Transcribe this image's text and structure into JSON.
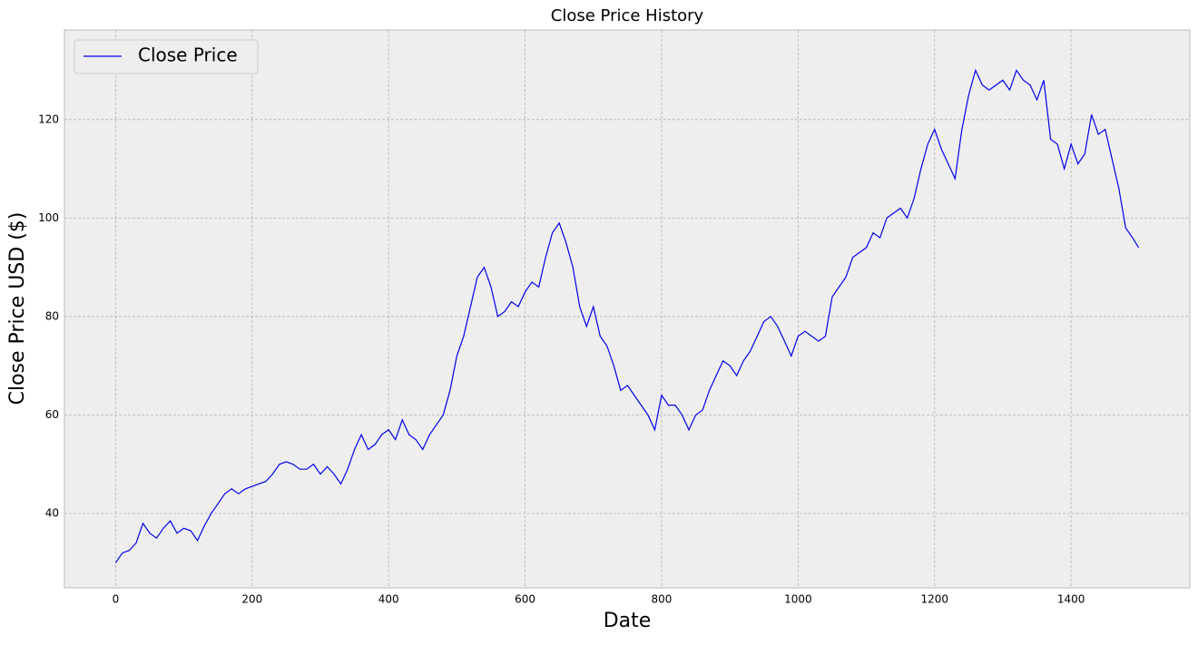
{
  "chart_data": {
    "type": "line",
    "title": "Close Price History",
    "xlabel": "Date",
    "ylabel": "Close Price USD ($)",
    "x": [
      0,
      10,
      20,
      30,
      40,
      50,
      60,
      70,
      80,
      90,
      100,
      110,
      120,
      130,
      140,
      150,
      160,
      170,
      180,
      190,
      200,
      210,
      220,
      230,
      240,
      250,
      260,
      270,
      280,
      290,
      300,
      310,
      320,
      330,
      340,
      350,
      360,
      370,
      380,
      390,
      400,
      410,
      420,
      430,
      440,
      450,
      460,
      470,
      480,
      490,
      500,
      510,
      520,
      530,
      540,
      550,
      560,
      570,
      580,
      590,
      600,
      610,
      620,
      630,
      640,
      650,
      660,
      670,
      680,
      690,
      700,
      710,
      720,
      730,
      740,
      750,
      760,
      770,
      780,
      790,
      800,
      810,
      820,
      830,
      840,
      850,
      860,
      870,
      880,
      890,
      900,
      910,
      920,
      930,
      940,
      950,
      960,
      970,
      980,
      990,
      1000,
      1010,
      1020,
      1030,
      1040,
      1050,
      1060,
      1070,
      1080,
      1090,
      1100,
      1110,
      1120,
      1130,
      1140,
      1150,
      1160,
      1170,
      1180,
      1190,
      1200,
      1210,
      1220,
      1230,
      1240,
      1250,
      1260,
      1270,
      1280,
      1290,
      1300,
      1310,
      1320,
      1330,
      1340,
      1350,
      1360,
      1370,
      1380,
      1390,
      1400,
      1410,
      1420,
      1430,
      1440,
      1450,
      1460,
      1470,
      1480,
      1490,
      1499
    ],
    "series": [
      {
        "name": "Close Price",
        "color": "#0000ee",
        "values": [
          30,
          32,
          32.5,
          34,
          38,
          36,
          35,
          37,
          38.5,
          36,
          37,
          36.5,
          34.5,
          37.5,
          40,
          42,
          44,
          45,
          44,
          45,
          45.5,
          46,
          46.5,
          48,
          50,
          50.5,
          50,
          49,
          49,
          50,
          48,
          49.5,
          48,
          46,
          49,
          53,
          56,
          53,
          54,
          56,
          57,
          55,
          59,
          56,
          55,
          53,
          56,
          58,
          60,
          65,
          72,
          76,
          82,
          88,
          90,
          86,
          80,
          81,
          83,
          82,
          85,
          87,
          86,
          92,
          97,
          99,
          95,
          90,
          82,
          78,
          82,
          76,
          74,
          70,
          65,
          66,
          64,
          62,
          60,
          57,
          64,
          62,
          62,
          60,
          57,
          60,
          61,
          65,
          68,
          71,
          70,
          68,
          71,
          73,
          76,
          79,
          80,
          78,
          75,
          72,
          76,
          77,
          76,
          75,
          76,
          84,
          86,
          88,
          92,
          93,
          94,
          97,
          96,
          100,
          101,
          102,
          100,
          104,
          110,
          115,
          118,
          114,
          111,
          108,
          118,
          125,
          130,
          127,
          126,
          127,
          128,
          126,
          130,
          128,
          127,
          124,
          128,
          116,
          115,
          110,
          115,
          111,
          113,
          121,
          117,
          118,
          112,
          106,
          98,
          96,
          94
        ]
      }
    ],
    "xlim": [
      -75,
      1574
    ],
    "ylim": [
      24.9,
      138.2
    ],
    "xticks": [
      0,
      200,
      400,
      600,
      800,
      1000,
      1200,
      1400
    ],
    "yticks": [
      40,
      60,
      80,
      100,
      120
    ],
    "grid": true,
    "legend": "upper left"
  }
}
